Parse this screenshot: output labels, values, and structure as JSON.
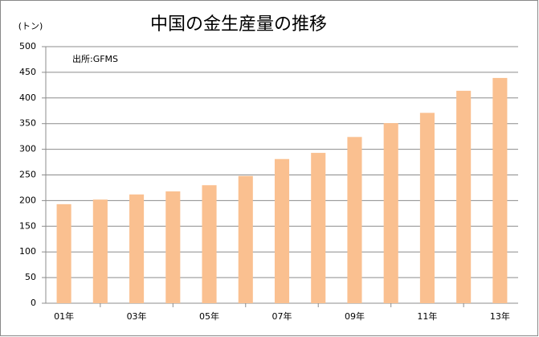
{
  "chart_data": {
    "type": "bar",
    "title": "中国の金生産量の推移",
    "y_label": "(トン)",
    "annotation": "出所:GFMS",
    "categories": [
      "01年",
      null,
      "03年",
      null,
      "05年",
      null,
      "07年",
      null,
      "09年",
      null,
      "11年",
      null,
      "13年"
    ],
    "values": [
      193,
      202,
      212,
      218,
      230,
      248,
      281,
      293,
      324,
      351,
      371,
      414,
      439
    ],
    "color": "#fac090",
    "ylim": [
      0,
      500
    ],
    "yticks": [
      0,
      50,
      100,
      150,
      200,
      250,
      300,
      350,
      400,
      450,
      500
    ],
    "grid": true
  }
}
